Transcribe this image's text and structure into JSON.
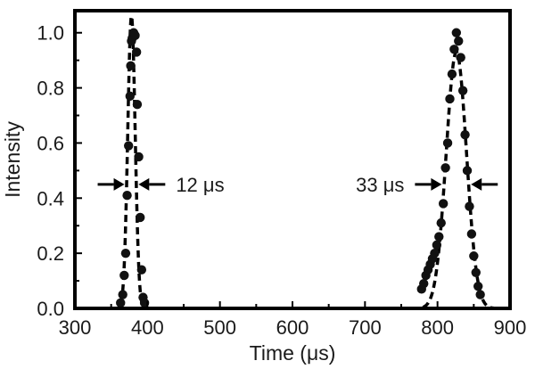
{
  "chart_data": {
    "type": "scatter",
    "xlabel": "Time (μs)",
    "ylabel": "Intensity",
    "xlim": [
      300,
      900
    ],
    "ylim": [
      0,
      1.08
    ],
    "xticks": [
      "300",
      "400",
      "500",
      "600",
      "700",
      "800",
      "900"
    ],
    "yticks": [
      "0.0",
      "0.2",
      "0.4",
      "0.6",
      "0.8",
      "1.0"
    ],
    "grid": false,
    "series": [
      {
        "style": "markers",
        "x": [
          363,
          366,
          368,
          370,
          372,
          374,
          376,
          377,
          378,
          379,
          381,
          383,
          385,
          386,
          388,
          390,
          392,
          394,
          396,
          778,
          781,
          784,
          787,
          790,
          793,
          796,
          799,
          802,
          805,
          808,
          811,
          814,
          817,
          820,
          823,
          826,
          829,
          832,
          835,
          838,
          841,
          844,
          847,
          850,
          853,
          856,
          859
        ],
        "y": [
          0.02,
          0.05,
          0.12,
          0.2,
          0.41,
          0.59,
          0.77,
          0.88,
          0.97,
          0.98,
          1.0,
          0.99,
          0.93,
          0.74,
          0.55,
          0.33,
          0.14,
          0.04,
          0.02,
          0.07,
          0.09,
          0.12,
          0.14,
          0.16,
          0.18,
          0.2,
          0.23,
          0.26,
          0.31,
          0.38,
          0.51,
          0.6,
          0.76,
          0.85,
          0.94,
          1.0,
          0.97,
          0.91,
          0.79,
          0.63,
          0.5,
          0.37,
          0.27,
          0.19,
          0.13,
          0.08,
          0.05
        ]
      },
      {
        "style": "dashed-fit",
        "peaks": [
          {
            "center": 378,
            "fwhm": 12,
            "amplitude": 1.06,
            "xrange": [
              352,
              404
            ]
          },
          {
            "center": 826,
            "fwhm": 33,
            "amplitude": 0.93,
            "xrange": [
              748,
              895
            ]
          }
        ]
      }
    ],
    "annotations": [
      {
        "text": "12 μs",
        "x": 378,
        "y": 0.45
      },
      {
        "text": "33 μs",
        "x": 826,
        "y": 0.45
      }
    ]
  }
}
